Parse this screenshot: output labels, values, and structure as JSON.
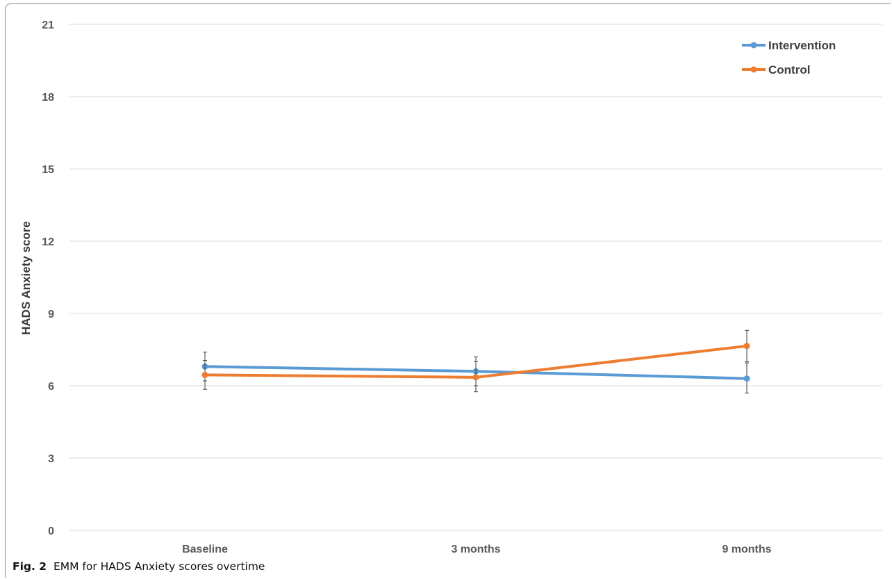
{
  "caption": {
    "label": "Fig. 2",
    "text": "EMM for HADS Anxiety scores overtime"
  },
  "chart_data": {
    "type": "line",
    "title": "",
    "xlabel": "",
    "ylabel": "HADS Anxiety score",
    "categories": [
      "Baseline",
      "3 months",
      "9 months"
    ],
    "ylim": [
      0,
      21
    ],
    "yticks": [
      0,
      3,
      6,
      9,
      12,
      15,
      18,
      21
    ],
    "grid": "horizontal",
    "legend_position": "top-right",
    "series": [
      {
        "name": "Intervention",
        "color": "#5b9bd5",
        "values": [
          6.8,
          6.6,
          6.3
        ],
        "error_low": [
          6.2,
          6.0,
          5.7
        ],
        "error_high": [
          7.4,
          7.2,
          6.95
        ]
      },
      {
        "name": "Control",
        "color": "#ed7d31",
        "values": [
          6.45,
          6.35,
          7.65
        ],
        "error_low": [
          5.85,
          5.75,
          7.0
        ],
        "error_high": [
          7.05,
          7.0,
          8.3
        ]
      }
    ]
  }
}
